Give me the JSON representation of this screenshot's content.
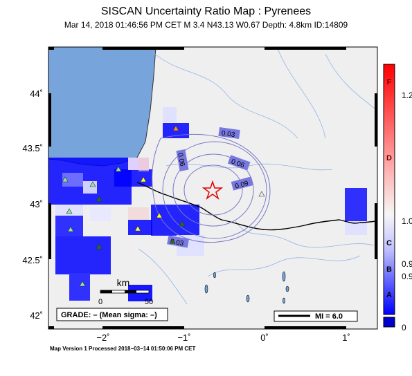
{
  "header": {
    "title": "SISCAN Uncertainty Ratio Map : Pyrenees",
    "subtitle": "Mar 14, 2018 01:46:56 PM CET   M 3.4    N43.13 W0.67    Depth: 4.8km    ID:14809"
  },
  "map": {
    "x_ticks": [
      {
        "value": -2,
        "label": "−2˚"
      },
      {
        "value": -1,
        "label": "−1˚"
      },
      {
        "value": 0,
        "label": "0˚"
      },
      {
        "value": 1,
        "label": "1˚"
      }
    ],
    "y_ticks": [
      {
        "value": 44,
        "label": "44˚"
      },
      {
        "value": 43.5,
        "label": "43.5˚"
      },
      {
        "value": 43,
        "label": "43˚"
      },
      {
        "value": 42.5,
        "label": "42.5˚"
      },
      {
        "value": 42,
        "label": "42˚"
      }
    ],
    "contour_labels": [
      "0.03",
      "0.06",
      "0.09",
      "0.06",
      "0.03"
    ],
    "scale_bar": {
      "unit": "km",
      "start": "0",
      "end": "50"
    },
    "grade_box": "GRADE: – (Mean sigma: –)",
    "mmi_legend": "MI = 6.0",
    "epicenter": {
      "lat": 43.13,
      "lon": -0.67,
      "symbol": "star-icon"
    }
  },
  "colorbar": {
    "letters": [
      "F",
      "D",
      "C",
      "B",
      "A"
    ],
    "values": [
      "1.2",
      "1.0",
      "0.9",
      "0.9",
      "0"
    ]
  },
  "footer": {
    "text": "Map Version 1 Processed 2018−03−14 01:50:06 PM CET"
  },
  "colors": {
    "land": "#efefef",
    "ocean": "#78a4dc",
    "high_uncertainty": "#0000ff",
    "low_uncertainty": "#f4c8c8",
    "contour": "#7878c8"
  }
}
